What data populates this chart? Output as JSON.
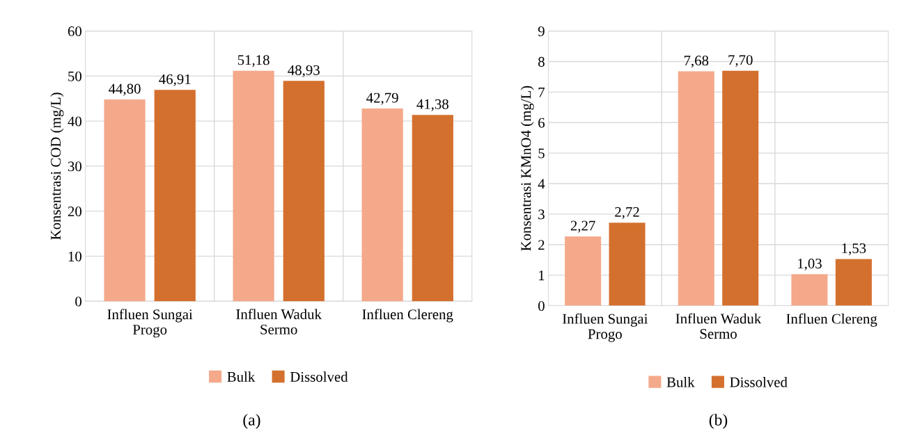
{
  "chart_data": [
    {
      "type": "bar",
      "ylabel": "Konsentrasi COD (mg/L)",
      "categories": [
        "Influen Sungai\nProgo",
        "Influen Waduk\nSermo",
        "Influen Clereng"
      ],
      "series": [
        {
          "name": "Bulk",
          "color": "#f4a98a",
          "values": [
            44.8,
            51.18,
            42.79
          ],
          "value_labels": [
            "44,80",
            "51,18",
            "42,79"
          ]
        },
        {
          "name": "Dissolved",
          "color": "#d4702e",
          "values": [
            46.91,
            48.93,
            41.38
          ],
          "value_labels": [
            "46,91",
            "48,93",
            "41,38"
          ]
        }
      ],
      "ylim": [
        0,
        60
      ],
      "yticks": [
        0,
        10,
        20,
        30,
        40,
        50,
        60
      ],
      "grid": true,
      "legend": "bottom",
      "annotations": [
        "(a)"
      ]
    },
    {
      "type": "bar",
      "ylabel": "Konsentrasi KMnO4 (mg/L)",
      "categories": [
        "Influen Sungai\nProgo",
        "Influen Waduk\nSermo",
        "Influen Clereng"
      ],
      "series": [
        {
          "name": "Bulk",
          "color": "#f4a98a",
          "values": [
            2.27,
            7.68,
            1.03
          ],
          "value_labels": [
            "2,27",
            "7,68",
            "1,03"
          ]
        },
        {
          "name": "Dissolved",
          "color": "#d4702e",
          "values": [
            2.72,
            7.7,
            1.53
          ],
          "value_labels": [
            "2,72",
            "7,70",
            "1,53"
          ]
        }
      ],
      "ylim": [
        0,
        9
      ],
      "yticks": [
        0,
        1,
        2,
        3,
        4,
        5,
        6,
        7,
        8,
        9
      ],
      "grid": true,
      "legend": "bottom",
      "annotations": [
        "(b)"
      ]
    }
  ]
}
